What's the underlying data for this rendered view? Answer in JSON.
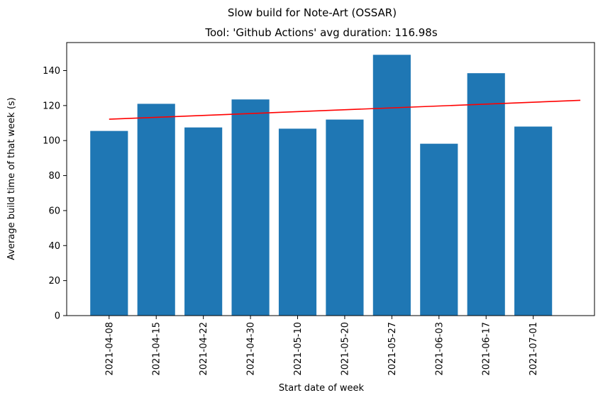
{
  "chart_data": {
    "type": "bar",
    "suptitle": "Slow build for Note-Art (OSSAR)",
    "title": "Tool: 'Github Actions' avg duration: 116.98s",
    "xlabel": "Start date of week",
    "ylabel": "Average build time of that week (s)",
    "categories": [
      "2021-04-08",
      "2021-04-15",
      "2021-04-22",
      "2021-04-30",
      "2021-05-10",
      "2021-05-20",
      "2021-05-27",
      "2021-06-03",
      "2021-06-17",
      "2021-07-01"
    ],
    "values": [
      105.5,
      121,
      107.5,
      123.5,
      106.8,
      112,
      149,
      98.2,
      138.5,
      108
    ],
    "trend_line": {
      "start": 112.2,
      "end": 123.0,
      "color": "#ff0000"
    },
    "bar_color": "#1f77b4",
    "ylim": [
      0,
      156
    ],
    "yticks": [
      0,
      20,
      40,
      60,
      80,
      100,
      120,
      140
    ],
    "grid": false,
    "legend": "none"
  }
}
